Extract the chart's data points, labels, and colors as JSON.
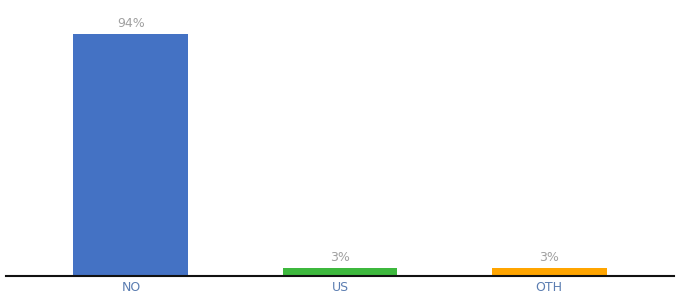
{
  "categories": [
    "NO",
    "US",
    "OTH"
  ],
  "values": [
    94,
    3,
    3
  ],
  "bar_colors": [
    "#4472c4",
    "#3db83d",
    "#ffa500"
  ],
  "labels": [
    "94%",
    "3%",
    "3%"
  ],
  "ylim": [
    0,
    105
  ],
  "background_color": "#ffffff",
  "label_color": "#a0a0a0",
  "label_fontsize": 9,
  "tick_fontsize": 9,
  "tick_color": "#5b7db1",
  "bar_width": 0.55
}
